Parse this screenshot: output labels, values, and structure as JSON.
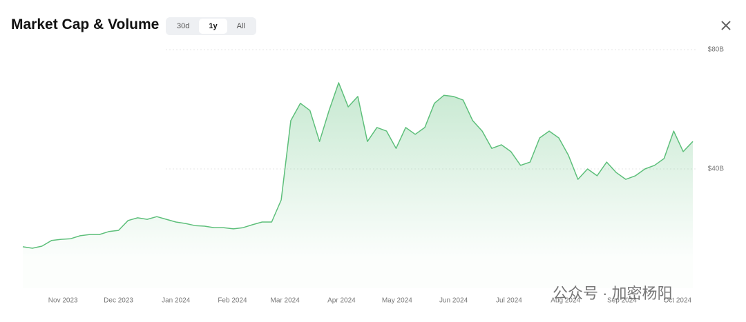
{
  "title": "Market Cap & Volume",
  "range_buttons": [
    "30d",
    "1y",
    "All"
  ],
  "active_range": "1y",
  "watermark": "公众号 · 加密杨阳",
  "chart_data": {
    "type": "area",
    "color": "#5dbf7a",
    "values": [
      13.9,
      13.4,
      14.1,
      16.0,
      16.4,
      16.6,
      17.6,
      18.0,
      18.0,
      19.0,
      19.4,
      22.7,
      23.6,
      23.1,
      24.0,
      23.1,
      22.2,
      21.7,
      21.0,
      20.8,
      20.3,
      20.3,
      19.9,
      20.3,
      21.3,
      22.2,
      22.2,
      29.6,
      56.2,
      62.0,
      59.6,
      49.2,
      59.6,
      68.9,
      60.8,
      64.3,
      49.2,
      53.9,
      52.7,
      46.9,
      53.9,
      51.6,
      53.9,
      62.0,
      64.7,
      64.3,
      63.1,
      56.2,
      52.7,
      46.9,
      48.1,
      45.8,
      41.2,
      42.3,
      50.4,
      52.7,
      50.4,
      44.6,
      36.5,
      40.0,
      37.7,
      42.3,
      38.8,
      36.5,
      37.7,
      40.0,
      41.2,
      43.5,
      52.7,
      45.8,
      49.2
    ],
    "xlim": [
      0,
      70
    ],
    "xticks": [
      {
        "value": 4.2,
        "label": "Nov 2023"
      },
      {
        "value": 10.0,
        "label": "Dec 2023"
      },
      {
        "value": 16.0,
        "label": "Jan 2024"
      },
      {
        "value": 21.9,
        "label": "Feb 2024"
      },
      {
        "value": 27.4,
        "label": "Mar 2024"
      },
      {
        "value": 33.3,
        "label": "Apr 2024"
      },
      {
        "value": 39.1,
        "label": "May 2024"
      },
      {
        "value": 45.0,
        "label": "Jun 2024"
      },
      {
        "value": 50.8,
        "label": "Jul 2024"
      },
      {
        "value": 56.7,
        "label": "Aug 2024"
      },
      {
        "value": 62.6,
        "label": "Sep 2024"
      },
      {
        "value": 68.4,
        "label": "Oct 2024"
      }
    ],
    "ylim": [
      0,
      80
    ],
    "yticks": [
      {
        "value": 40,
        "label": "$40B"
      },
      {
        "value": 80,
        "label": "$80B"
      }
    ],
    "grid": true
  }
}
